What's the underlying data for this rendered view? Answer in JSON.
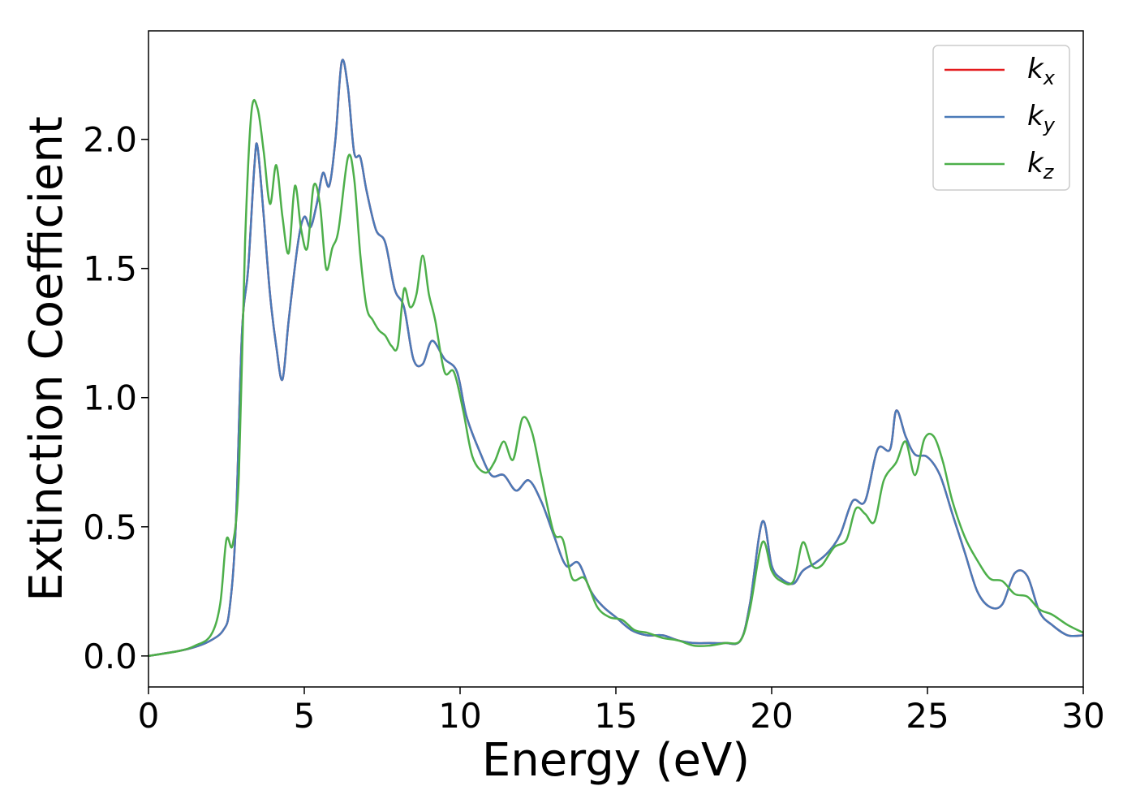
{
  "chart_data": {
    "type": "line",
    "title": "",
    "xlabel": "Energy (eV)",
    "ylabel": "Extinction Coefficient",
    "xlim": [
      0,
      30
    ],
    "ylim": [
      -0.12,
      2.42
    ],
    "xticks": [
      0,
      5,
      10,
      15,
      20,
      25,
      30
    ],
    "xtick_labels": [
      "0",
      "5",
      "10",
      "15",
      "20",
      "25",
      "30"
    ],
    "yticks": [
      0.0,
      0.5,
      1.0,
      1.5,
      2.0
    ],
    "ytick_labels": [
      "0.0",
      "0.5",
      "1.0",
      "1.5",
      "2.0"
    ],
    "grid": false,
    "legend_position": "top-right",
    "series": [
      {
        "name": "k_x",
        "label_base": "k",
        "label_sub": "x",
        "color": "#e41a1c",
        "x": [
          0,
          1,
          1.5,
          2,
          2.4,
          2.6,
          2.8,
          3.0,
          3.2,
          3.4,
          3.5,
          3.7,
          3.9,
          4.1,
          4.3,
          4.5,
          4.8,
          5.0,
          5.2,
          5.4,
          5.6,
          5.8,
          6.0,
          6.2,
          6.4,
          6.6,
          6.8,
          7.0,
          7.3,
          7.6,
          7.9,
          8.2,
          8.5,
          8.8,
          9.1,
          9.5,
          9.9,
          10.2,
          10.6,
          11.0,
          11.4,
          11.8,
          12.2,
          12.6,
          13.0,
          13.4,
          13.8,
          14.2,
          14.6,
          15.0,
          15.5,
          16.0,
          16.5,
          17.0,
          17.5,
          18.0,
          18.5,
          19.0,
          19.3,
          19.7,
          20.0,
          20.3,
          20.7,
          21.0,
          21.4,
          21.8,
          22.2,
          22.6,
          23.0,
          23.4,
          23.8,
          24.0,
          24.3,
          24.6,
          25.0,
          25.4,
          25.8,
          26.2,
          26.6,
          27.0,
          27.4,
          27.8,
          28.2,
          28.6,
          29.0,
          29.5,
          30.0
        ],
        "y": [
          0,
          0.02,
          0.035,
          0.06,
          0.1,
          0.18,
          0.5,
          1.25,
          1.5,
          1.9,
          1.97,
          1.7,
          1.4,
          1.2,
          1.07,
          1.3,
          1.6,
          1.7,
          1.66,
          1.75,
          1.87,
          1.82,
          2.0,
          2.3,
          2.2,
          1.95,
          1.93,
          1.8,
          1.65,
          1.6,
          1.42,
          1.35,
          1.15,
          1.13,
          1.22,
          1.15,
          1.1,
          0.93,
          0.8,
          0.7,
          0.7,
          0.64,
          0.68,
          0.6,
          0.47,
          0.35,
          0.36,
          0.25,
          0.19,
          0.15,
          0.1,
          0.08,
          0.08,
          0.06,
          0.05,
          0.05,
          0.05,
          0.06,
          0.2,
          0.52,
          0.35,
          0.3,
          0.28,
          0.33,
          0.36,
          0.4,
          0.47,
          0.6,
          0.6,
          0.8,
          0.8,
          0.95,
          0.85,
          0.78,
          0.77,
          0.7,
          0.55,
          0.4,
          0.25,
          0.19,
          0.2,
          0.32,
          0.31,
          0.17,
          0.12,
          0.08,
          0.08
        ]
      },
      {
        "name": "k_y",
        "label_base": "k",
        "label_sub": "y",
        "color": "#4a7ab8",
        "x": [
          0,
          1,
          1.5,
          2,
          2.4,
          2.6,
          2.8,
          3.0,
          3.2,
          3.4,
          3.5,
          3.7,
          3.9,
          4.1,
          4.3,
          4.5,
          4.8,
          5.0,
          5.2,
          5.4,
          5.6,
          5.8,
          6.0,
          6.2,
          6.4,
          6.6,
          6.8,
          7.0,
          7.3,
          7.6,
          7.9,
          8.2,
          8.5,
          8.8,
          9.1,
          9.5,
          9.9,
          10.2,
          10.6,
          11.0,
          11.4,
          11.8,
          12.2,
          12.6,
          13.0,
          13.4,
          13.8,
          14.2,
          14.6,
          15.0,
          15.5,
          16.0,
          16.5,
          17.0,
          17.5,
          18.0,
          18.5,
          19.0,
          19.3,
          19.7,
          20.0,
          20.3,
          20.7,
          21.0,
          21.4,
          21.8,
          22.2,
          22.6,
          23.0,
          23.4,
          23.8,
          24.0,
          24.3,
          24.6,
          25.0,
          25.4,
          25.8,
          26.2,
          26.6,
          27.0,
          27.4,
          27.8,
          28.2,
          28.6,
          29.0,
          29.5,
          30.0
        ],
        "y": [
          0,
          0.02,
          0.035,
          0.06,
          0.1,
          0.18,
          0.5,
          1.25,
          1.5,
          1.9,
          1.97,
          1.7,
          1.4,
          1.2,
          1.07,
          1.3,
          1.6,
          1.7,
          1.66,
          1.75,
          1.87,
          1.82,
          2.0,
          2.3,
          2.2,
          1.95,
          1.93,
          1.8,
          1.65,
          1.6,
          1.42,
          1.35,
          1.15,
          1.13,
          1.22,
          1.15,
          1.1,
          0.93,
          0.8,
          0.7,
          0.7,
          0.64,
          0.68,
          0.6,
          0.47,
          0.35,
          0.36,
          0.25,
          0.19,
          0.15,
          0.1,
          0.08,
          0.08,
          0.06,
          0.05,
          0.05,
          0.05,
          0.06,
          0.2,
          0.52,
          0.35,
          0.3,
          0.28,
          0.33,
          0.36,
          0.4,
          0.47,
          0.6,
          0.6,
          0.8,
          0.8,
          0.95,
          0.85,
          0.78,
          0.77,
          0.7,
          0.55,
          0.4,
          0.25,
          0.19,
          0.2,
          0.32,
          0.31,
          0.17,
          0.12,
          0.08,
          0.08
        ]
      },
      {
        "name": "k_z",
        "label_base": "k",
        "label_sub": "z",
        "color": "#4daf4a",
        "x": [
          0,
          1,
          1.5,
          2,
          2.3,
          2.5,
          2.7,
          2.9,
          3.1,
          3.3,
          3.5,
          3.7,
          3.9,
          4.1,
          4.3,
          4.5,
          4.7,
          4.9,
          5.1,
          5.3,
          5.5,
          5.7,
          5.9,
          6.1,
          6.4,
          6.6,
          6.8,
          7.0,
          7.2,
          7.4,
          7.6,
          7.8,
          8.0,
          8.2,
          8.4,
          8.6,
          8.8,
          9.0,
          9.2,
          9.5,
          9.8,
          10.1,
          10.4,
          10.8,
          11.1,
          11.4,
          11.7,
          12.0,
          12.3,
          12.6,
          13.0,
          13.3,
          13.6,
          14.0,
          14.4,
          14.8,
          15.2,
          15.6,
          16.0,
          16.5,
          17.0,
          17.5,
          18.0,
          18.5,
          19.0,
          19.3,
          19.7,
          20.0,
          20.3,
          20.7,
          21.0,
          21.3,
          21.6,
          22.0,
          22.4,
          22.7,
          23.0,
          23.3,
          23.6,
          24.0,
          24.3,
          24.6,
          24.9,
          25.2,
          25.5,
          25.8,
          26.2,
          26.6,
          27.0,
          27.4,
          27.8,
          28.2,
          28.6,
          29.0,
          29.5,
          30.0
        ],
        "y": [
          0,
          0.02,
          0.04,
          0.08,
          0.2,
          0.45,
          0.43,
          0.7,
          1.6,
          2.1,
          2.12,
          1.95,
          1.75,
          1.9,
          1.7,
          1.56,
          1.82,
          1.65,
          1.58,
          1.82,
          1.75,
          1.5,
          1.58,
          1.65,
          1.93,
          1.85,
          1.55,
          1.35,
          1.3,
          1.26,
          1.24,
          1.2,
          1.2,
          1.42,
          1.35,
          1.4,
          1.55,
          1.4,
          1.3,
          1.1,
          1.1,
          0.95,
          0.77,
          0.71,
          0.75,
          0.83,
          0.76,
          0.92,
          0.87,
          0.7,
          0.48,
          0.45,
          0.3,
          0.3,
          0.19,
          0.15,
          0.14,
          0.1,
          0.09,
          0.07,
          0.06,
          0.04,
          0.04,
          0.05,
          0.06,
          0.18,
          0.44,
          0.33,
          0.29,
          0.29,
          0.44,
          0.35,
          0.35,
          0.42,
          0.45,
          0.57,
          0.55,
          0.52,
          0.68,
          0.75,
          0.83,
          0.7,
          0.84,
          0.85,
          0.75,
          0.6,
          0.46,
          0.37,
          0.3,
          0.29,
          0.24,
          0.23,
          0.18,
          0.16,
          0.12,
          0.09
        ]
      }
    ]
  }
}
